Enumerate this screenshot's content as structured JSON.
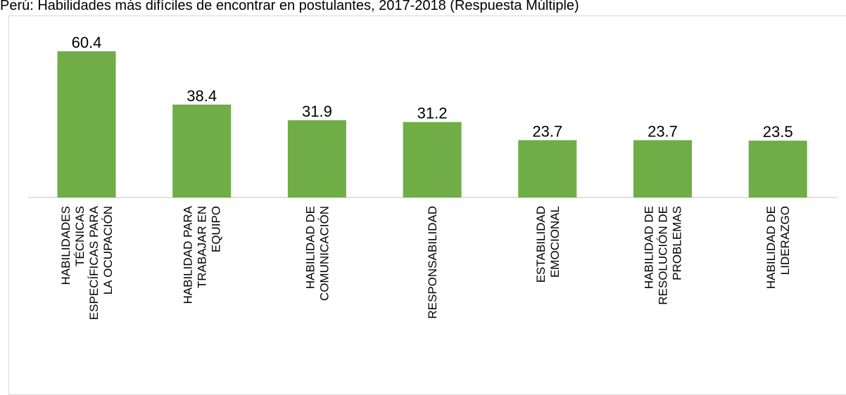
{
  "title": "Perú: Habilidades más difíciles de encontrar en postulantes, 2017-2018 (Respuesta Múltiple)",
  "chart_data": {
    "type": "bar",
    "title": "Perú: Habilidades más difíciles de encontrar en postulantes, 2017-2018 (Respuesta Múltiple)",
    "categories": [
      [
        "HABILIDADES",
        "TÉCNICAS",
        "ESPECÍFICAS PARA",
        "LA OCUPACIÓN"
      ],
      [
        "HABILIDAD PARA",
        "TRABAJAR EN",
        "EQUIPO"
      ],
      [
        "HABILIDAD DE",
        "COMUNICACIÓN"
      ],
      [
        "RESPONSABILIDAD"
      ],
      [
        "ESTABILIDAD",
        "EMOCIONAL"
      ],
      [
        "HABILIDAD DE",
        "RESOLUCIÓN DE",
        "PROBLEMAS"
      ],
      [
        "HABILIDAD DE",
        "LIDERAZGO"
      ]
    ],
    "values": [
      60.4,
      38.4,
      31.9,
      31.2,
      23.7,
      23.7,
      23.5
    ],
    "value_labels": [
      "60.4",
      "38.4",
      "31.9",
      "31.2",
      "23.7",
      "23.7",
      "23.5"
    ],
    "bar_color": "#70ad47",
    "axis_color": "#d9d9d9",
    "xlabel": "",
    "ylabel": "",
    "ylim": [
      0,
      60.4
    ],
    "grid": false,
    "legend": "none",
    "data_labels": true
  }
}
